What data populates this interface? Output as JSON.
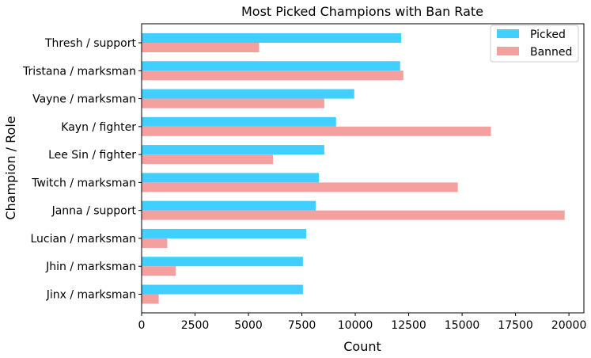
{
  "chart_data": {
    "type": "bar",
    "orientation": "horizontal",
    "title": "Most Picked Champions with Ban Rate",
    "xlabel": "Count",
    "ylabel": "Champion / Role",
    "categories": [
      "Thresh / support",
      "Tristana / marksman",
      "Vayne / marksman",
      "Kayn / fighter",
      "Lee Sin / fighter",
      "Twitch / marksman",
      "Janna / support",
      "Lucian / marksman",
      "Jhin / marksman",
      "Jinx / marksman"
    ],
    "series": [
      {
        "name": "Picked",
        "color": "#40cfff",
        "values": [
          12150,
          12100,
          9950,
          9100,
          8550,
          8300,
          8150,
          7700,
          7550,
          7550
        ]
      },
      {
        "name": "Banned",
        "color": "#f4a09f",
        "values": [
          5500,
          12250,
          8550,
          16350,
          6150,
          14800,
          19800,
          1200,
          1600,
          800
        ]
      }
    ],
    "xlim": [
      0,
      20700
    ],
    "xticks": [
      0,
      2500,
      5000,
      7500,
      10000,
      12500,
      15000,
      17500,
      20000
    ],
    "legend_position": "top-right",
    "grid": false
  }
}
